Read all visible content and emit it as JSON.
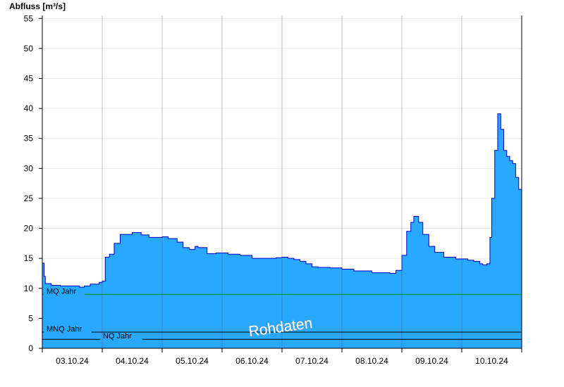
{
  "chart_data": {
    "type": "area",
    "title": "",
    "ylabel": "Abfluss [m³/s]",
    "xlabel": "",
    "ylim": [
      0,
      55.5
    ],
    "xlim": [
      0,
      8
    ],
    "yticks": [
      0,
      5,
      10,
      15,
      20,
      25,
      30,
      35,
      40,
      45,
      50,
      55
    ],
    "ygrid": true,
    "day_labels": [
      "03.10.24",
      "04.10.24",
      "05.10.24",
      "06.10.24",
      "07.10.24",
      "08.10.24",
      "09.10.24",
      "10.10.24"
    ],
    "x_unit": "days since 03.10.24 00:00",
    "series": [
      {
        "name": "",
        "fill_color": "#29a8ff",
        "line_color": "#0000cc",
        "x": [
          0,
          0.02,
          0.03,
          0.05,
          0.08,
          0.15,
          0.2,
          0.3,
          0.45,
          0.55,
          0.62,
          0.7,
          0.8,
          0.95,
          1.0,
          1.05,
          1.12,
          1.2,
          1.3,
          1.5,
          1.65,
          1.78,
          1.85,
          2.0,
          2.1,
          2.25,
          2.35,
          2.45,
          2.55,
          2.6,
          2.75,
          2.9,
          3.1,
          3.3,
          3.5,
          3.7,
          3.9,
          4.0,
          4.1,
          4.2,
          4.3,
          4.4,
          4.5,
          4.6,
          4.8,
          5.0,
          5.2,
          5.5,
          5.8,
          5.9,
          6.0,
          6.08,
          6.15,
          6.2,
          6.28,
          6.35,
          6.45,
          6.55,
          6.7,
          6.9,
          7.1,
          7.2,
          7.3,
          7.35,
          7.42,
          7.47,
          7.5,
          7.55,
          7.6,
          7.65,
          7.7,
          7.75,
          7.8,
          7.85,
          7.9,
          7.95,
          8.0
        ],
        "values": [
          14.2,
          14.2,
          12.0,
          10.8,
          10.8,
          10.5,
          10.5,
          10.4,
          10.4,
          10.4,
          10.2,
          10.4,
          10.7,
          11.0,
          11.2,
          15.2,
          15.7,
          17.5,
          19.0,
          19.3,
          18.9,
          18.5,
          18.5,
          18.6,
          18.3,
          17.7,
          16.8,
          16.5,
          17.0,
          16.8,
          15.8,
          15.9,
          15.7,
          15.5,
          15.0,
          15.0,
          15.1,
          15.2,
          15.0,
          14.8,
          14.5,
          14.1,
          13.6,
          13.5,
          13.4,
          13.2,
          12.9,
          12.6,
          12.5,
          13.0,
          15.5,
          19.5,
          21.0,
          22.0,
          21.0,
          19.0,
          17.0,
          16.0,
          15.2,
          14.9,
          14.7,
          14.5,
          14.1,
          13.9,
          14.1,
          18.5,
          25.0,
          33.0,
          39.1,
          36.5,
          33.0,
          32.0,
          31.3,
          30.8,
          28.5,
          26.5,
          24.6
        ]
      }
    ],
    "reference_lines": [
      {
        "label": "MQ Jahr",
        "value": 9.0,
        "color": "#009900"
      },
      {
        "label": "MNQ Jahr",
        "value": 2.7,
        "color": "#000000"
      },
      {
        "label": "NQ Jahr",
        "value": 1.5,
        "color": "#000000"
      }
    ],
    "watermark": "Rohdaten"
  }
}
